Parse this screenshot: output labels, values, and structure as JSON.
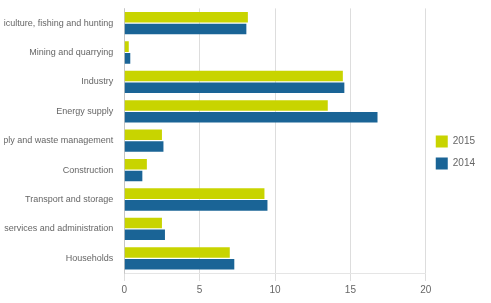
{
  "chart_data": {
    "type": "bar",
    "orientation": "horizontal",
    "categories": [
      "Agriculture, fishing and hunting",
      "Mining and quarrying",
      "Industry",
      "Energy supply",
      "Water supply and waste management",
      "Construction",
      "Transport and storage",
      "Trade, other services and administration",
      "Households"
    ],
    "series": [
      {
        "name": "2015",
        "color": "#c8d400",
        "values": [
          8.2,
          0.3,
          14.5,
          13.5,
          2.5,
          1.5,
          9.3,
          2.5,
          7.0
        ]
      },
      {
        "name": "2014",
        "color": "#1a6496",
        "values": [
          8.1,
          0.4,
          14.6,
          16.8,
          2.6,
          1.2,
          9.5,
          2.7,
          7.3
        ]
      }
    ],
    "xlim": [
      0,
      20
    ],
    "xticks": [
      0,
      5,
      10,
      15,
      20
    ],
    "grid": "x",
    "legend": "right"
  }
}
